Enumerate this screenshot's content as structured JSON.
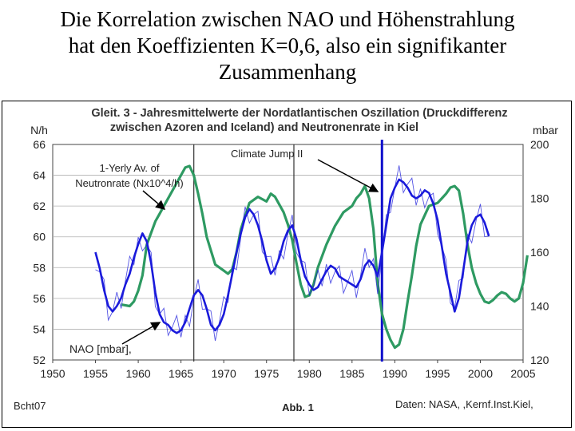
{
  "slide": {
    "title_lines": [
      "Die Korrelation zwischen NAO und Höhenstrahlung",
      "hat den Koeffizienten K=0,6, also ein  signifikanter",
      "Zusammenhang"
    ]
  },
  "chart_data": {
    "type": "line",
    "title_lines": [
      "Gleit. 3 - Jahresmittelwerte der Nordatlantischen Oszillation (Druckdifferenz",
      "zwischen Azoren and Iceland) and Neutronenrate in Kiel"
    ],
    "left_axis": {
      "unit": "N/h",
      "ticks": [
        "66",
        "64",
        "62",
        "60",
        "58",
        "56",
        "54",
        "52"
      ],
      "range": [
        52,
        66
      ]
    },
    "right_axis": {
      "unit": "mbar",
      "ticks": [
        "200",
        "180",
        "160",
        "140",
        "120"
      ],
      "range": [
        120,
        200
      ]
    },
    "x_axis": {
      "ticks": [
        "1950",
        "1955",
        "1960",
        "1965",
        "1970",
        "1975",
        "1980",
        "1985",
        "1990",
        "1995",
        "2000",
        "2005"
      ],
      "range": [
        1950,
        2005
      ]
    },
    "vertical_markers": [
      1966.5,
      1978.2,
      1988.5
    ],
    "annotations": {
      "neutron_label_1": "1-Yerly Av. of",
      "neutron_label_2": "Neutronrate (Nx10^4/h)",
      "climate_jump": "Climate Jump II",
      "nao_label": "NAO  [mbar],"
    },
    "footer": {
      "left": "Bcht07",
      "center": "Abb. 1",
      "right": "Daten: NASA, ,Kernf.Inst.Kiel,"
    },
    "colors": {
      "neutron": "#2e9a62",
      "nao": "#1a1adb",
      "marker_blue": "#1010cc"
    },
    "series": [
      {
        "name": "Neutronrate (N/h)",
        "axis": "left",
        "x": [
          1958.0,
          1959.0,
          1959.5,
          1960.0,
          1960.5,
          1961.0,
          1962.0,
          1962.5,
          1963.0,
          1964.0,
          1965.0,
          1965.5,
          1966.0,
          1966.5,
          1967.0,
          1967.5,
          1968.0,
          1969.0,
          1970.0,
          1970.5,
          1971.0,
          1971.5,
          1972.0,
          1973.0,
          1974.0,
          1975.0,
          1975.5,
          1976.0,
          1977.0,
          1977.5,
          1978.0,
          1978.5,
          1979.0,
          1979.5,
          1980.0,
          1980.5,
          1981.0,
          1982.0,
          1983.0,
          1984.0,
          1985.0,
          1985.5,
          1986.0,
          1986.5,
          1987.0,
          1987.5,
          1988.0,
          1988.5,
          1989.0,
          1989.5,
          1990.0,
          1990.5,
          1991.0,
          1991.5,
          1992.0,
          1992.5,
          1993.0,
          1994.0,
          1995.0,
          1995.5,
          1996.0,
          1996.5,
          1997.0,
          1997.5,
          1998.0,
          1998.5,
          1999.0,
          1999.5,
          2000.0,
          2000.5,
          2001.0,
          2001.5,
          2002.0,
          2002.5,
          2003.0,
          2003.5,
          2004.0,
          2004.5,
          2005.0,
          2005.5
        ],
        "values": [
          55.6,
          55.5,
          55.8,
          56.5,
          57.5,
          59.5,
          61.0,
          61.5,
          62.0,
          63.0,
          64.0,
          64.5,
          64.6,
          64.0,
          62.8,
          61.5,
          60.0,
          58.2,
          57.8,
          57.6,
          57.9,
          59.0,
          60.5,
          62.2,
          62.6,
          62.3,
          62.8,
          62.6,
          61.6,
          60.8,
          59.8,
          58.3,
          56.9,
          56.1,
          56.2,
          56.9,
          58.0,
          59.5,
          60.7,
          61.6,
          62.0,
          62.5,
          62.8,
          63.3,
          62.5,
          60.5,
          57.0,
          55.0,
          54.0,
          53.3,
          52.8,
          53.0,
          54.0,
          55.8,
          57.5,
          59.4,
          60.8,
          62.0,
          62.2,
          62.5,
          62.8,
          63.2,
          63.3,
          63.0,
          61.5,
          59.5,
          58.0,
          57.0,
          56.3,
          55.8,
          55.7,
          55.9,
          56.2,
          56.4,
          56.3,
          56.0,
          55.8,
          56.0,
          57.0,
          58.8
        ]
      },
      {
        "name": "NAO (mbar)",
        "axis": "right",
        "x": [
          1955.0,
          1955.5,
          1956.0,
          1956.5,
          1957.0,
          1957.5,
          1958.0,
          1958.5,
          1959.0,
          1959.5,
          1960.0,
          1960.5,
          1961.0,
          1961.5,
          1962.0,
          1962.5,
          1963.0,
          1963.5,
          1964.0,
          1964.5,
          1965.0,
          1965.5,
          1966.0,
          1966.5,
          1967.0,
          1967.5,
          1968.0,
          1968.5,
          1969.0,
          1969.5,
          1970.0,
          1970.5,
          1971.0,
          1971.5,
          1972.0,
          1972.5,
          1973.0,
          1973.5,
          1974.0,
          1974.5,
          1975.0,
          1975.5,
          1976.0,
          1976.5,
          1977.0,
          1977.5,
          1978.0,
          1978.5,
          1979.0,
          1979.5,
          1980.0,
          1980.5,
          1981.0,
          1981.5,
          1982.0,
          1982.5,
          1983.0,
          1983.5,
          1984.0,
          1984.5,
          1985.0,
          1985.5,
          1986.0,
          1986.5,
          1987.0,
          1987.5,
          1988.0,
          1988.5,
          1989.0,
          1989.5,
          1990.0,
          1990.5,
          1991.0,
          1991.5,
          1992.0,
          1992.5,
          1993.0,
          1993.5,
          1994.0,
          1994.5,
          1995.0,
          1995.5,
          1996.0,
          1996.5,
          1997.0,
          1997.5,
          1998.0,
          1998.5,
          1999.0,
          1999.5,
          2000.0,
          2000.5,
          2001.0
        ],
        "values": [
          160,
          154,
          146,
          140,
          138,
          140,
          143,
          148,
          152,
          158,
          163,
          167,
          164,
          156,
          145,
          137,
          134,
          133,
          131,
          130,
          131,
          134,
          139,
          144,
          146,
          144,
          139,
          133,
          131,
          133,
          137,
          144,
          152,
          160,
          167,
          173,
          176,
          174,
          170,
          164,
          157,
          152,
          154,
          158,
          164,
          168,
          170,
          165,
          157,
          151,
          148,
          146,
          147,
          150,
          153,
          155,
          154,
          151,
          150,
          149,
          148,
          147,
          150,
          155,
          157,
          155,
          151,
          160,
          170,
          180,
          184,
          187,
          186,
          184,
          181,
          180,
          181,
          183,
          182,
          178,
          172,
          162,
          152,
          145,
          138,
          143,
          153,
          164,
          170,
          173,
          174,
          171,
          166
        ]
      }
    ]
  }
}
